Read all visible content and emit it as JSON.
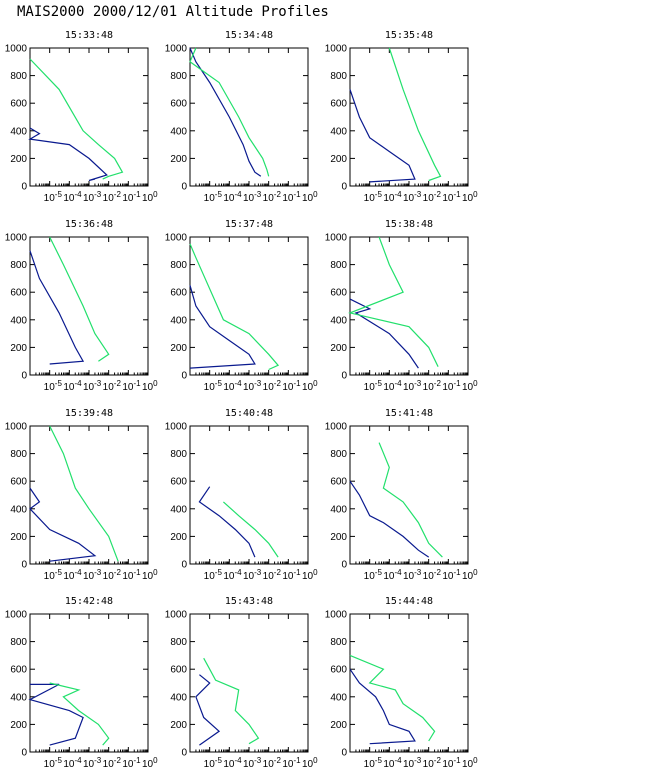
{
  "title": "MAIS2000 2000/12/01 Altitude Profiles",
  "colors": {
    "series_a": "#0a1a8f",
    "series_b": "#22e06c",
    "axis": "#000000"
  },
  "chart_data": [
    {
      "type": "line",
      "subtitle": "15:33:48",
      "xscale": "log",
      "xlim": [
        1e-06,
        1
      ],
      "ylim": [
        0,
        1000
      ],
      "yticks": [
        "0",
        "200",
        "400",
        "600",
        "800",
        "1000"
      ],
      "xticks": [
        "10-5",
        "10-4",
        "10-3",
        "10-2",
        "10-1",
        "100"
      ],
      "series": [
        {
          "x": [
            1e-06,
            3e-06,
            1e-06,
            0.0001,
            0.001,
            0.008,
            0.001,
            0.002
          ],
          "y": [
            420,
            380,
            340,
            300,
            200,
            80,
            40,
            50
          ]
        },
        {
          "x": [
            1e-06,
            3e-05,
            0.0005,
            0.003,
            0.02,
            0.05,
            0.01,
            0.005
          ],
          "y": [
            920,
            700,
            400,
            300,
            200,
            100,
            70,
            50
          ]
        }
      ]
    },
    {
      "type": "line",
      "subtitle": "15:34:48",
      "xscale": "log",
      "xlim": [
        1e-06,
        1
      ],
      "ylim": [
        0,
        1000
      ],
      "yticks": [
        "0",
        "200",
        "400",
        "600",
        "800",
        "1000"
      ],
      "xticks": [
        "10-5",
        "10-4",
        "10-3",
        "10-2",
        "10-1",
        "100"
      ],
      "series": [
        {
          "x": [
            1e-06,
            2e-06,
            1e-05,
            0.0001,
            0.0005,
            0.001,
            0.002,
            0.004
          ],
          "y": [
            1000,
            900,
            750,
            500,
            300,
            180,
            100,
            70
          ]
        },
        {
          "x": [
            2e-06,
            1e-06,
            3e-05,
            0.0003,
            0.001,
            0.005,
            0.008,
            0.01
          ],
          "y": [
            1000,
            900,
            750,
            500,
            350,
            200,
            120,
            70
          ]
        }
      ]
    },
    {
      "type": "line",
      "subtitle": "15:35:48",
      "xscale": "log",
      "xlim": [
        1e-06,
        1
      ],
      "ylim": [
        0,
        1000
      ],
      "yticks": [
        "0",
        "200",
        "400",
        "600",
        "800",
        "1000"
      ],
      "xticks": [
        "10-5",
        "10-4",
        "10-3",
        "10-2",
        "10-1",
        "100"
      ],
      "series": [
        {
          "x": [
            1e-06,
            3e-06,
            1e-05,
            0.0001,
            0.001,
            0.002,
            1e-05
          ],
          "y": [
            700,
            500,
            350,
            250,
            150,
            50,
            30
          ]
        },
        {
          "x": [
            0.0001,
            0.0005,
            0.003,
            0.02,
            0.04,
            0.01
          ],
          "y": [
            1000,
            700,
            400,
            150,
            70,
            40
          ]
        }
      ]
    },
    {
      "type": "line",
      "subtitle": "15:36:48",
      "xscale": "log",
      "xlim": [
        1e-06,
        1
      ],
      "ylim": [
        0,
        1000
      ],
      "yticks": [
        "0",
        "200",
        "400",
        "600",
        "800",
        "1000"
      ],
      "xticks": [
        "10-5",
        "10-4",
        "10-3",
        "10-2",
        "10-1",
        "100"
      ],
      "series": [
        {
          "x": [
            1e-06,
            3e-06,
            3e-05,
            0.0002,
            0.0005,
            1e-05
          ],
          "y": [
            900,
            700,
            450,
            200,
            100,
            80
          ]
        },
        {
          "x": [
            1e-05,
            5e-05,
            0.0005,
            0.002,
            0.01,
            0.003
          ],
          "y": [
            1000,
            800,
            500,
            300,
            150,
            100
          ]
        }
      ]
    },
    {
      "type": "line",
      "subtitle": "15:37:48",
      "xscale": "log",
      "xlim": [
        1e-06,
        1
      ],
      "ylim": [
        0,
        1000
      ],
      "yticks": [
        "0",
        "200",
        "400",
        "600",
        "800",
        "1000"
      ],
      "xticks": [
        "10-5",
        "10-4",
        "10-3",
        "10-2",
        "10-1",
        "100"
      ],
      "series": [
        {
          "x": [
            1e-06,
            2e-06,
            1e-05,
            0.0001,
            0.001,
            0.002,
            1e-06
          ],
          "y": [
            650,
            500,
            350,
            250,
            150,
            80,
            50
          ]
        },
        {
          "x": [
            1e-06,
            2e-06,
            5e-05,
            0.001,
            0.01,
            0.03,
            0.01
          ],
          "y": [
            950,
            850,
            400,
            300,
            150,
            70,
            40
          ]
        }
      ]
    },
    {
      "type": "line",
      "subtitle": "15:38:48",
      "xscale": "log",
      "xlim": [
        1e-06,
        1
      ],
      "ylim": [
        0,
        1000
      ],
      "yticks": [
        "0",
        "200",
        "400",
        "600",
        "800",
        "1000"
      ],
      "xticks": [
        "10-5",
        "10-4",
        "10-3",
        "10-2",
        "10-1",
        "100"
      ],
      "series": [
        {
          "x": [
            1e-06,
            1e-05,
            2e-06,
            0.0001,
            0.001,
            0.003
          ],
          "y": [
            550,
            480,
            450,
            300,
            150,
            50
          ]
        },
        {
          "x": [
            3e-05,
            0.0001,
            0.0005,
            1e-06,
            0.001,
            0.01,
            0.03
          ],
          "y": [
            1000,
            800,
            600,
            450,
            350,
            200,
            60
          ]
        }
      ]
    },
    {
      "type": "line",
      "subtitle": "15:39:48",
      "xscale": "log",
      "xlim": [
        1e-06,
        1
      ],
      "ylim": [
        0,
        1000
      ],
      "yticks": [
        "0",
        "200",
        "400",
        "600",
        "800",
        "1000"
      ],
      "xticks": [
        "10-5",
        "10-4",
        "10-3",
        "10-2",
        "10-1",
        "100"
      ],
      "series": [
        {
          "x": [
            1e-06,
            3e-06,
            1e-06,
            1e-05,
            0.0003,
            0.002,
            1e-05
          ],
          "y": [
            550,
            450,
            400,
            250,
            150,
            60,
            20
          ]
        },
        {
          "x": [
            1e-05,
            5e-05,
            0.0002,
            0.001,
            0.01,
            0.03
          ],
          "y": [
            1000,
            800,
            550,
            400,
            200,
            20
          ]
        }
      ]
    },
    {
      "type": "line",
      "subtitle": "15:40:48",
      "xscale": "log",
      "xlim": [
        1e-06,
        1
      ],
      "ylim": [
        0,
        1000
      ],
      "yticks": [
        "0",
        "200",
        "400",
        "600",
        "800",
        "1000"
      ],
      "xticks": [
        "10-5",
        "10-4",
        "10-3",
        "10-2",
        "10-1",
        "100"
      ],
      "series": [
        {
          "x": [
            1e-05,
            3e-06,
            3e-05,
            0.0002,
            0.001,
            0.002
          ],
          "y": [
            560,
            450,
            350,
            250,
            150,
            50
          ]
        },
        {
          "x": [
            5e-05,
            0.0003,
            0.002,
            0.01,
            0.03
          ],
          "y": [
            450,
            350,
            250,
            150,
            50
          ]
        }
      ]
    },
    {
      "type": "line",
      "subtitle": "15:41:48",
      "xscale": "log",
      "xlim": [
        1e-06,
        1
      ],
      "ylim": [
        0,
        1000
      ],
      "yticks": [
        "0",
        "200",
        "400",
        "600",
        "800",
        "1000"
      ],
      "xticks": [
        "10-5",
        "10-4",
        "10-3",
        "10-2",
        "10-1",
        "100"
      ],
      "series": [
        {
          "x": [
            1e-06,
            3e-06,
            1e-05,
            5e-05,
            0.0005,
            0.003,
            0.01
          ],
          "y": [
            600,
            500,
            350,
            300,
            200,
            100,
            50
          ]
        },
        {
          "x": [
            3e-05,
            0.0001,
            5e-05,
            0.0005,
            0.003,
            0.01,
            0.05
          ],
          "y": [
            880,
            700,
            550,
            450,
            300,
            150,
            50
          ]
        }
      ]
    },
    {
      "type": "line",
      "subtitle": "15:42:48",
      "xscale": "log",
      "xlim": [
        1e-06,
        1
      ],
      "ylim": [
        0,
        1000
      ],
      "yticks": [
        "0",
        "200",
        "400",
        "600",
        "800",
        "1000"
      ],
      "xticks": [
        "10-5",
        "10-4",
        "10-3",
        "10-2",
        "10-1",
        "100"
      ],
      "series": [
        {
          "x": [
            1e-06,
            3e-05,
            1e-06,
            0.0001,
            0.0005,
            0.0002,
            1e-05
          ],
          "y": [
            490,
            490,
            380,
            300,
            250,
            100,
            50
          ]
        },
        {
          "x": [
            1e-05,
            0.0003,
            5e-05,
            0.0003,
            0.003,
            0.01,
            0.005
          ],
          "y": [
            500,
            450,
            400,
            300,
            200,
            100,
            50
          ]
        }
      ]
    },
    {
      "type": "line",
      "subtitle": "15:43:48",
      "xscale": "log",
      "xlim": [
        1e-06,
        1
      ],
      "ylim": [
        0,
        1000
      ],
      "yticks": [
        "0",
        "200",
        "400",
        "600",
        "800",
        "1000"
      ],
      "xticks": [
        "10-5",
        "10-4",
        "10-3",
        "10-2",
        "10-1",
        "100"
      ],
      "series": [
        {
          "x": [
            3e-06,
            1e-05,
            2e-06,
            5e-06,
            3e-05,
            3e-06
          ],
          "y": [
            560,
            500,
            400,
            250,
            150,
            50
          ]
        },
        {
          "x": [
            5e-06,
            1e-05,
            2e-05,
            0.0003,
            0.0002,
            0.001,
            0.003,
            0.001
          ],
          "y": [
            680,
            600,
            520,
            450,
            300,
            200,
            100,
            60
          ]
        }
      ]
    },
    {
      "type": "line",
      "subtitle": "15:44:48",
      "xscale": "log",
      "xlim": [
        1e-06,
        1
      ],
      "ylim": [
        0,
        1000
      ],
      "yticks": [
        "0",
        "200",
        "400",
        "600",
        "800",
        "1000"
      ],
      "xticks": [
        "10-5",
        "10-4",
        "10-3",
        "10-2",
        "10-1",
        "100"
      ],
      "series": [
        {
          "x": [
            1e-06,
            3e-06,
            2e-05,
            5e-05,
            0.0001,
            0.001,
            0.002,
            1e-05
          ],
          "y": [
            600,
            500,
            400,
            300,
            200,
            150,
            80,
            60
          ]
        },
        {
          "x": [
            1e-06,
            5e-05,
            1e-05,
            0.0002,
            0.0005,
            0.005,
            0.02,
            0.01
          ],
          "y": [
            700,
            600,
            500,
            450,
            350,
            250,
            150,
            80
          ]
        }
      ]
    }
  ]
}
